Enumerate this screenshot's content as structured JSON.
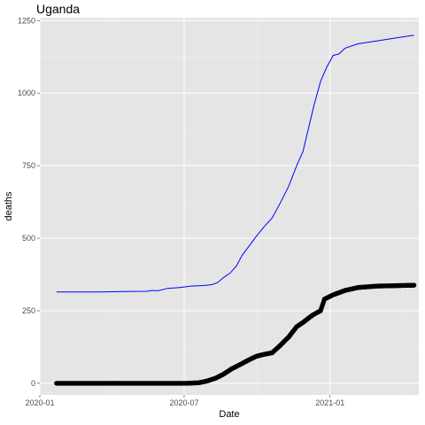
{
  "chart_data": {
    "type": "line",
    "title": "Uganda",
    "xlabel": "Date",
    "ylabel": "deaths",
    "x_ticks": [
      "2020-01",
      "2020-07",
      "2021-01"
    ],
    "y_ticks": [
      0,
      250,
      500,
      750,
      1000,
      1250
    ],
    "xlim": [
      "2020-01-01",
      "2021-04-23"
    ],
    "ylim": [
      -40,
      1260
    ],
    "grid": true,
    "legend": "none",
    "background": "#e5e5e5",
    "series": [
      {
        "kind": "line",
        "color": "#0000ff",
        "points": [
          [
            "2020-01-22",
            315
          ],
          [
            "2020-02-15",
            315
          ],
          [
            "2020-03-15",
            315
          ],
          [
            "2020-04-15",
            316
          ],
          [
            "2020-05-15",
            317
          ],
          [
            "2020-05-22",
            320
          ],
          [
            "2020-05-29",
            319
          ],
          [
            "2020-06-10",
            327
          ],
          [
            "2020-06-25",
            330
          ],
          [
            "2020-07-10",
            335
          ],
          [
            "2020-07-25",
            337
          ],
          [
            "2020-08-05",
            340
          ],
          [
            "2020-08-12",
            347
          ],
          [
            "2020-08-20",
            365
          ],
          [
            "2020-08-28",
            380
          ],
          [
            "2020-09-05",
            405
          ],
          [
            "2020-09-12",
            440
          ],
          [
            "2020-09-20",
            470
          ],
          [
            "2020-10-01",
            510
          ],
          [
            "2020-10-10",
            540
          ],
          [
            "2020-10-20",
            570
          ],
          [
            "2020-10-30",
            620
          ],
          [
            "2020-11-10",
            680
          ],
          [
            "2020-11-20",
            750
          ],
          [
            "2020-11-28",
            800
          ],
          [
            "2020-12-05",
            880
          ],
          [
            "2020-12-12",
            960
          ],
          [
            "2020-12-20",
            1040
          ],
          [
            "2020-12-28",
            1090
          ],
          [
            "2021-01-05",
            1130
          ],
          [
            "2021-01-12",
            1135
          ],
          [
            "2021-01-20",
            1155
          ],
          [
            "2021-02-05",
            1170
          ],
          [
            "2021-03-01",
            1180
          ],
          [
            "2021-03-25",
            1190
          ],
          [
            "2021-04-17",
            1200
          ]
        ]
      },
      {
        "kind": "points",
        "color": "#000000",
        "points": [
          [
            "2020-01-22",
            0
          ],
          [
            "2020-07-05",
            0
          ],
          [
            "2020-07-20",
            2
          ],
          [
            "2020-07-30",
            8
          ],
          [
            "2020-08-10",
            18
          ],
          [
            "2020-08-20",
            32
          ],
          [
            "2020-08-30",
            50
          ],
          [
            "2020-09-10",
            65
          ],
          [
            "2020-09-20",
            80
          ],
          [
            "2020-09-30",
            93
          ],
          [
            "2020-10-10",
            100
          ],
          [
            "2020-10-20",
            105
          ],
          [
            "2020-10-30",
            130
          ],
          [
            "2020-11-10",
            160
          ],
          [
            "2020-11-20",
            195
          ],
          [
            "2020-11-28",
            210
          ],
          [
            "2020-12-10",
            235
          ],
          [
            "2020-12-20",
            250
          ],
          [
            "2020-12-25",
            290
          ],
          [
            "2021-01-05",
            305
          ],
          [
            "2021-01-20",
            320
          ],
          [
            "2021-02-05",
            330
          ],
          [
            "2021-03-01",
            335
          ],
          [
            "2021-04-17",
            338
          ]
        ]
      }
    ]
  }
}
